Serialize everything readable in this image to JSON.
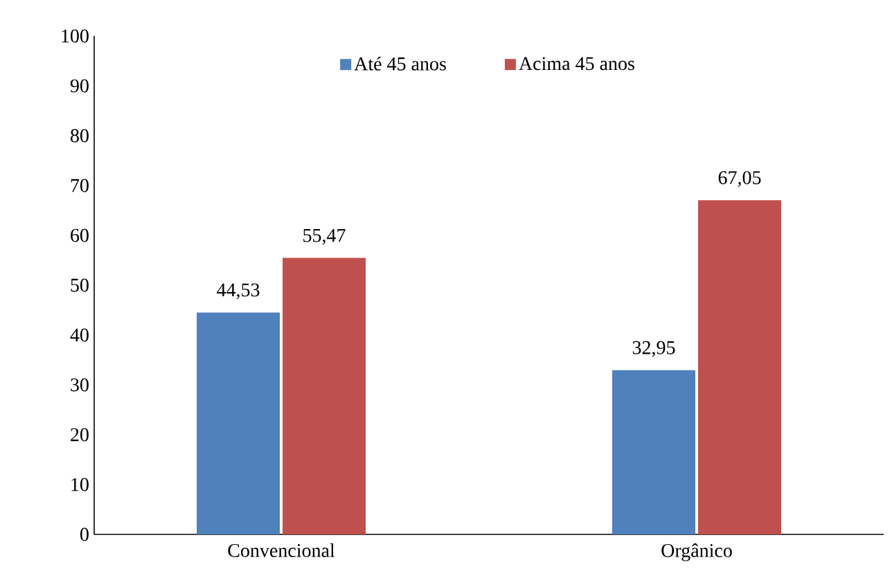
{
  "chart_data": {
    "type": "bar",
    "categories": [
      "Convencional",
      "Orgânico"
    ],
    "series": [
      {
        "name": "Até 45 anos",
        "color": "#4f81bd",
        "values": [
          44.53,
          32.95
        ],
        "value_labels": [
          "44,53",
          "32,95"
        ]
      },
      {
        "name": "Acima 45 anos",
        "color": "#c0504d",
        "values": [
          55.47,
          67.05
        ],
        "value_labels": [
          "55,47",
          "67,05"
        ]
      }
    ],
    "ylim": [
      0,
      100
    ],
    "yticks": [
      0,
      10,
      20,
      30,
      40,
      50,
      60,
      70,
      80,
      90,
      100
    ],
    "legend": "top",
    "grid": false
  }
}
